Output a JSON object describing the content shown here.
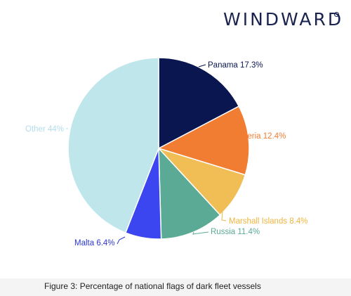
{
  "brand": {
    "logo_text": "WINDWARD"
  },
  "caption": "Figure 3: Percentage of national flags of dark fleet vessels",
  "chart_data": {
    "type": "pie",
    "start_angle_deg": 0,
    "direction": "clockwise",
    "slices": [
      {
        "label": "Panama 17.3%",
        "name": "Panama",
        "value": 17.3,
        "color": "#0a1650",
        "label_color": "#0a1650"
      },
      {
        "label": "Liberia 12.4%",
        "name": "Liberia",
        "value": 12.4,
        "color": "#f07d32",
        "label_color": "#f07d32"
      },
      {
        "label": "Marshall Islands 8.4%",
        "name": "Marshall Islands",
        "value": 8.4,
        "color": "#f0be55",
        "label_color": "#f0b440"
      },
      {
        "label": "Russia 11.4%",
        "name": "Russia",
        "value": 11.4,
        "color": "#5aaa96",
        "label_color": "#5aaa96"
      },
      {
        "label": "Malta 6.4%",
        "name": "Malta",
        "value": 6.4,
        "color": "#3c46f0",
        "label_color": "#2d37d2"
      },
      {
        "label": "Other 44%",
        "name": "Other",
        "value": 44,
        "color": "#bee6eb",
        "label_color": "#b4dceb"
      }
    ]
  }
}
